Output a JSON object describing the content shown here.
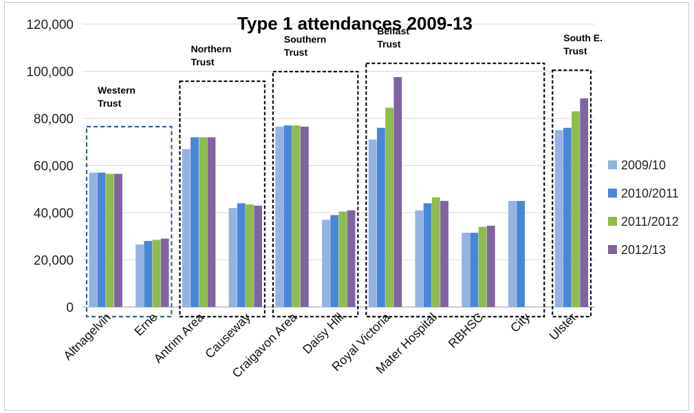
{
  "chart_data": {
    "type": "bar",
    "title": "Type 1 attendances 2009-13",
    "xlabel": "",
    "ylabel": "",
    "ylim": [
      0,
      120000
    ],
    "yticks": [
      "0",
      "20,000",
      "40,000",
      "60,000",
      "80,000",
      "100,000",
      "120,000"
    ],
    "grid": true,
    "legend_position": "right",
    "categories": [
      "Altnagelvin",
      "Erne",
      "Antrim Area",
      "Causeway",
      "Craigavon Area",
      "Daisy Hill",
      "Royal Victoria",
      "Mater Hospital",
      "RBHSC",
      "City",
      "Ulster"
    ],
    "series": [
      {
        "name": "2009/10",
        "color": "#95b3e0",
        "values": [
          57000,
          26500,
          67000,
          42000,
          76500,
          37000,
          71000,
          41000,
          31500,
          45000,
          75000
        ]
      },
      {
        "name": "2010/2011",
        "color": "#4a86d8",
        "values": [
          57000,
          28000,
          72000,
          44000,
          77000,
          39000,
          76000,
          44000,
          31500,
          45000,
          76000
        ]
      },
      {
        "name": "2011/2012",
        "color": "#8fbc4e",
        "values": [
          56500,
          28500,
          72000,
          43500,
          77000,
          40500,
          84500,
          46500,
          34000,
          null,
          83000
        ]
      },
      {
        "name": "2012/13",
        "color": "#8064a2",
        "values": [
          56500,
          29000,
          72000,
          43000,
          76500,
          41000,
          97500,
          45000,
          34500,
          null,
          88500
        ]
      }
    ],
    "groups": [
      {
        "label_lines": [
          "Western",
          "Trust"
        ],
        "first": 0,
        "last": 1,
        "style": "blue-dashed"
      },
      {
        "label_lines": [
          "Northern",
          "Trust"
        ],
        "first": 2,
        "last": 3,
        "style": "black-dashed"
      },
      {
        "label_lines": [
          "Southern",
          " Trust"
        ],
        "first": 4,
        "last": 5,
        "style": "black-dashed"
      },
      {
        "label_lines": [
          "Belfast",
          "Trust"
        ],
        "first": 6,
        "last": 9,
        "style": "black-dashed"
      },
      {
        "label_lines": [
          "South E.",
          "Trust"
        ],
        "first": 10,
        "last": 10,
        "style": "black-dashed"
      }
    ]
  }
}
